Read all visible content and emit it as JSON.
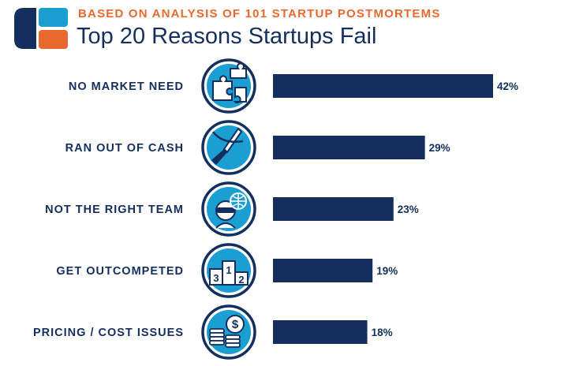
{
  "header": {
    "subtitle": "BASED ON ANALYSIS OF 101 STARTUP POSTMORTEMS",
    "title": "Top 20 Reasons Startups Fail"
  },
  "colors": {
    "bar": "#142f5e",
    "icon_fill": "#1b9fd3",
    "icon_ring": "#142f5e",
    "accent": "#e8692e"
  },
  "chart_data": {
    "type": "bar",
    "orientation": "horizontal",
    "title": "Top 20 Reasons Startups Fail",
    "subtitle": "BASED ON ANALYSIS OF 101 STARTUP POSTMORTEMS",
    "categories": [
      "NO MARKET NEED",
      "RAN OUT OF CASH",
      "NOT THE RIGHT TEAM",
      "GET OUTCOMPETED",
      "PRICING / COST ISSUES"
    ],
    "values": [
      42,
      29,
      23,
      19,
      18
    ],
    "value_labels": [
      "42%",
      "29%",
      "23%",
      "19%",
      "18%"
    ],
    "icons": [
      "puzzle-icon",
      "knife-icon",
      "team-icon",
      "podium-icon",
      "coins-icon"
    ],
    "podium_labels": [
      "3",
      "1",
      "2"
    ],
    "coin_symbol": "$",
    "xlim": [
      0,
      42
    ],
    "grid": false,
    "legend": "none"
  }
}
